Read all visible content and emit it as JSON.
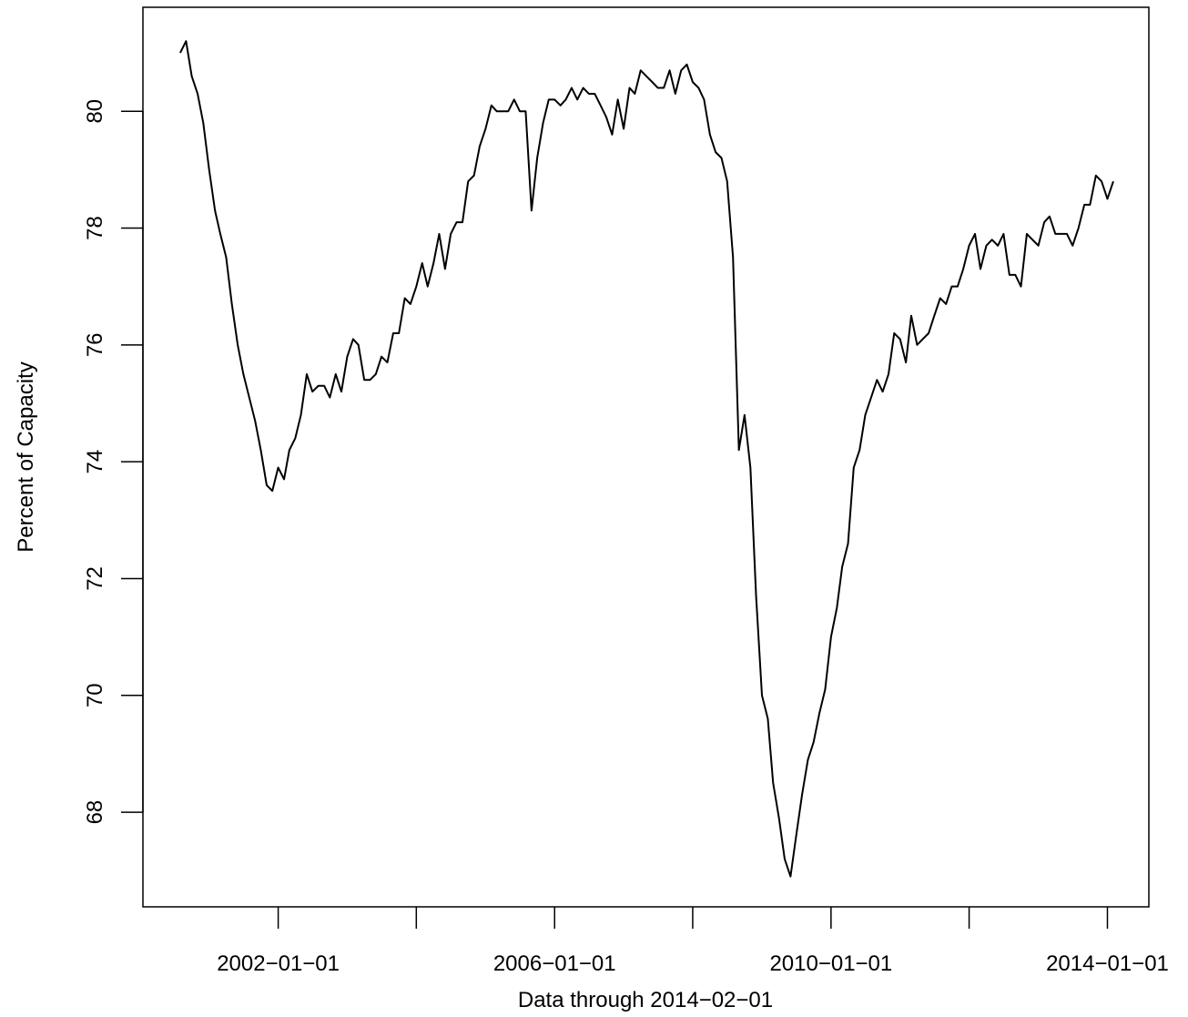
{
  "chart_data": {
    "type": "line",
    "x_label": "Data through 2014−02−01",
    "y_label": "Percent of Capacity",
    "x": [
      "2000-08-01",
      "2000-09-01",
      "2000-10-01",
      "2000-11-01",
      "2000-12-01",
      "2001-01-01",
      "2001-02-01",
      "2001-03-01",
      "2001-04-01",
      "2001-05-01",
      "2001-06-01",
      "2001-07-01",
      "2001-08-01",
      "2001-09-01",
      "2001-10-01",
      "2001-11-01",
      "2001-12-01",
      "2002-01-01",
      "2002-02-01",
      "2002-03-01",
      "2002-04-01",
      "2002-05-01",
      "2002-06-01",
      "2002-07-01",
      "2002-08-01",
      "2002-09-01",
      "2002-10-01",
      "2002-11-01",
      "2002-12-01",
      "2003-01-01",
      "2003-02-01",
      "2003-03-01",
      "2003-04-01",
      "2003-05-01",
      "2003-06-01",
      "2003-07-01",
      "2003-08-01",
      "2003-09-01",
      "2003-10-01",
      "2003-11-01",
      "2003-12-01",
      "2004-01-01",
      "2004-02-01",
      "2004-03-01",
      "2004-04-01",
      "2004-05-01",
      "2004-06-01",
      "2004-07-01",
      "2004-08-01",
      "2004-09-01",
      "2004-10-01",
      "2004-11-01",
      "2004-12-01",
      "2005-01-01",
      "2005-02-01",
      "2005-03-01",
      "2005-04-01",
      "2005-05-01",
      "2005-06-01",
      "2005-07-01",
      "2005-08-01",
      "2005-09-01",
      "2005-10-01",
      "2005-11-01",
      "2005-12-01",
      "2006-01-01",
      "2006-02-01",
      "2006-03-01",
      "2006-04-01",
      "2006-05-01",
      "2006-06-01",
      "2006-07-01",
      "2006-08-01",
      "2006-09-01",
      "2006-10-01",
      "2006-11-01",
      "2006-12-01",
      "2007-01-01",
      "2007-02-01",
      "2007-03-01",
      "2007-04-01",
      "2007-05-01",
      "2007-06-01",
      "2007-07-01",
      "2007-08-01",
      "2007-09-01",
      "2007-10-01",
      "2007-11-01",
      "2007-12-01",
      "2008-01-01",
      "2008-02-01",
      "2008-03-01",
      "2008-04-01",
      "2008-05-01",
      "2008-06-01",
      "2008-07-01",
      "2008-08-01",
      "2008-09-01",
      "2008-10-01",
      "2008-11-01",
      "2008-12-01",
      "2009-01-01",
      "2009-02-01",
      "2009-03-01",
      "2009-04-01",
      "2009-05-01",
      "2009-06-01",
      "2009-07-01",
      "2009-08-01",
      "2009-09-01",
      "2009-10-01",
      "2009-11-01",
      "2009-12-01",
      "2010-01-01",
      "2010-02-01",
      "2010-03-01",
      "2010-04-01",
      "2010-05-01",
      "2010-06-01",
      "2010-07-01",
      "2010-08-01",
      "2010-09-01",
      "2010-10-01",
      "2010-11-01",
      "2010-12-01",
      "2011-01-01",
      "2011-02-01",
      "2011-03-01",
      "2011-04-01",
      "2011-05-01",
      "2011-06-01",
      "2011-07-01",
      "2011-08-01",
      "2011-09-01",
      "2011-10-01",
      "2011-11-01",
      "2011-12-01",
      "2012-01-01",
      "2012-02-01",
      "2012-03-01",
      "2012-04-01",
      "2012-05-01",
      "2012-06-01",
      "2012-07-01",
      "2012-08-01",
      "2012-09-01",
      "2012-10-01",
      "2012-11-01",
      "2012-12-01",
      "2013-01-01",
      "2013-02-01",
      "2013-03-01",
      "2013-04-01",
      "2013-05-01",
      "2013-06-01",
      "2013-07-01",
      "2013-08-01",
      "2013-09-01",
      "2013-10-01",
      "2013-11-01",
      "2013-12-01",
      "2014-01-01",
      "2014-02-01"
    ],
    "series": [
      {
        "color": "#000000",
        "values": [
          81.0,
          81.2,
          80.6,
          80.3,
          79.8,
          79.0,
          78.3,
          77.9,
          77.5,
          76.7,
          76.0,
          75.5,
          75.1,
          74.7,
          74.2,
          73.6,
          73.5,
          73.9,
          73.7,
          74.2,
          74.4,
          74.8,
          75.5,
          75.2,
          75.3,
          75.3,
          75.1,
          75.5,
          75.2,
          75.8,
          76.1,
          76.0,
          75.4,
          75.4,
          75.5,
          75.8,
          75.7,
          76.2,
          76.2,
          76.8,
          76.7,
          77.0,
          77.4,
          77.0,
          77.4,
          77.9,
          77.3,
          77.9,
          78.1,
          78.1,
          78.8,
          78.9,
          79.4,
          79.7,
          80.1,
          80.0,
          80.0,
          80.0,
          80.2,
          80.0,
          80.0,
          78.3,
          79.2,
          79.8,
          80.2,
          80.2,
          80.1,
          80.2,
          80.4,
          80.2,
          80.4,
          80.3,
          80.3,
          80.1,
          79.9,
          79.6,
          80.2,
          79.7,
          80.4,
          80.3,
          80.7,
          80.6,
          80.5,
          80.4,
          80.4,
          80.7,
          80.3,
          80.7,
          80.8,
          80.5,
          80.4,
          80.2,
          79.6,
          79.3,
          79.2,
          78.8,
          77.5,
          74.2,
          74.8,
          73.9,
          71.7,
          70.0,
          69.6,
          68.5,
          67.9,
          67.2,
          66.9,
          67.6,
          68.3,
          68.9,
          69.2,
          69.7,
          70.1,
          71.0,
          71.5,
          72.2,
          72.6,
          73.9,
          74.2,
          74.8,
          75.1,
          75.4,
          75.2,
          75.5,
          76.2,
          76.1,
          75.7,
          76.5,
          76.0,
          76.1,
          76.2,
          76.5,
          76.8,
          76.7,
          77.0,
          77.0,
          77.3,
          77.7,
          77.9,
          77.3,
          77.7,
          77.8,
          77.7,
          77.9,
          77.2,
          77.2,
          77.0,
          77.9,
          77.8,
          77.7,
          78.1,
          78.2,
          77.9,
          77.9,
          77.9,
          77.7,
          78.0,
          78.4,
          78.4,
          78.9,
          78.8,
          78.5,
          78.8
        ]
      }
    ],
    "xlim": [
      "2000-01-17",
      "2014-08-08"
    ],
    "xticks": [
      {
        "value": "2002-01-01",
        "label": "2002−01−01"
      },
      {
        "value": "2004-01-01",
        "label": null
      },
      {
        "value": "2006-01-01",
        "label": "2006−01−01"
      },
      {
        "value": "2008-01-01",
        "label": null
      },
      {
        "value": "2010-01-01",
        "label": "2010−01−01"
      },
      {
        "value": "2012-01-01",
        "label": null
      },
      {
        "value": "2014-01-01",
        "label": "2014−01−01"
      }
    ],
    "ylim": [
      66.38,
      81.78
    ],
    "yticks": [
      68,
      70,
      72,
      74,
      76,
      78,
      80
    ]
  }
}
